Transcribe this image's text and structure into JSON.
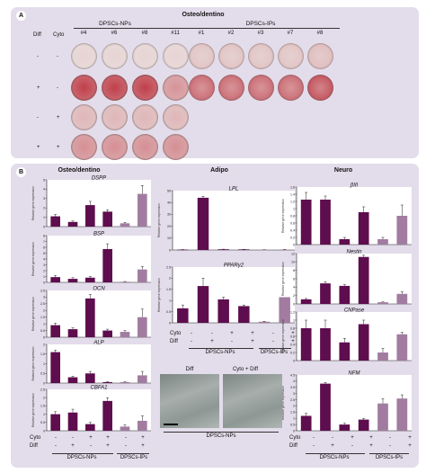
{
  "panelA": {
    "badge": "A",
    "title": "Osteo/dentino",
    "group_np": "DPSCs-NPs",
    "group_ip": "DPSCs-IPs",
    "diff_label": "Diff",
    "cyto_label": "Cyto",
    "np_clones": [
      "#4",
      "#6",
      "#8",
      "#11"
    ],
    "ip_clones": [
      "#1",
      "#2",
      "#3",
      "#7",
      "#8"
    ],
    "rows": [
      {
        "diff": "-",
        "cyto": "-"
      },
      {
        "diff": "+",
        "cyto": "-"
      },
      {
        "diff": "-",
        "cyto": "+"
      },
      {
        "diff": "+",
        "cyto": "+"
      }
    ]
  },
  "panelB": {
    "badge": "B",
    "col_osteo": "Osteo/dentino",
    "col_adipo": "Adipo",
    "col_neuro": "Neuro",
    "ylabel": "Relative gene expression",
    "group_np": "DPSCs-NPs",
    "group_ip": "DPSCs-IPs",
    "cyto": "Cyto",
    "diff": "Diff",
    "cyto_signs": [
      "-",
      "-",
      "+",
      "+",
      "-",
      "+"
    ],
    "diff_signs": [
      "-",
      "+",
      "-",
      "+",
      "-",
      "+"
    ],
    "adipo_cyto_signs": [
      "-",
      "-",
      "+",
      "+",
      "-",
      "+"
    ],
    "adipo_diff_signs": [
      "-",
      "+",
      "-",
      "+",
      "-",
      "+"
    ],
    "micro_diff": "Diff",
    "micro_cytodiff": "Cyto + Diff",
    "micro_group": "DPSCs-NPs"
  },
  "colors": {
    "np": "#5e0d4e",
    "ip": "#a17ca0",
    "panel": "#e3dcea",
    "stain": "#b82230"
  },
  "chart_data": [
    {
      "type": "bar",
      "title": "DSPP",
      "ylim": [
        0,
        5
      ],
      "yticks": [
        "0",
        "1",
        "2",
        "3",
        "4",
        "5"
      ],
      "values": [
        1.1,
        0.5,
        2.3,
        1.6,
        0.35,
        3.5
      ],
      "errors": [
        0.2,
        0.1,
        0.4,
        0.2,
        0.1,
        0.9
      ]
    },
    {
      "type": "bar",
      "title": "BSP",
      "ylim": [
        0,
        8
      ],
      "yticks": [
        "0",
        "1",
        "2",
        "3",
        "4",
        "5",
        "6",
        "7",
        "8"
      ],
      "values": [
        0.9,
        0.6,
        0.8,
        5.7,
        0.1,
        2.2
      ],
      "errors": [
        0.3,
        0.2,
        0.2,
        0.9,
        0.05,
        0.5
      ]
    },
    {
      "type": "bar",
      "title": "OCN",
      "ylim": [
        0,
        3.5
      ],
      "yticks": [
        "0",
        "0.5",
        "1",
        "1.5",
        "2",
        "2.5",
        "3",
        "3.5"
      ],
      "values": [
        0.9,
        0.6,
        2.9,
        0.5,
        0.4,
        1.5
      ],
      "errors": [
        0.15,
        0.1,
        0.3,
        0.1,
        0.1,
        0.6
      ]
    },
    {
      "type": "bar",
      "title": "ALP",
      "ylim": [
        0,
        2
      ],
      "yticks": [
        "0",
        "0.5",
        "1",
        "1.5",
        "2"
      ],
      "values": [
        1.6,
        0.3,
        0.5,
        0.05,
        0.05,
        0.4
      ],
      "errors": [
        0.1,
        0.05,
        0.1,
        0.02,
        0.02,
        0.2
      ]
    },
    {
      "type": "bar",
      "title": "CBFA1",
      "ylim": [
        0,
        2.5
      ],
      "yticks": [
        "0",
        "0.5",
        "1",
        "1.5",
        "2",
        "2.5"
      ],
      "values": [
        1.0,
        1.1,
        0.4,
        1.8,
        0.25,
        0.6
      ],
      "errors": [
        0.15,
        0.2,
        0.1,
        0.2,
        0.1,
        0.3
      ]
    },
    {
      "type": "bar",
      "title": "LPL",
      "ylim": [
        0,
        50
      ],
      "yticks": [
        "0",
        "10",
        "20",
        "30",
        "40",
        "50"
      ],
      "values": [
        0.3,
        44,
        0.6,
        0.5,
        0.2,
        0.4
      ],
      "errors": [
        0.1,
        1.2,
        0.1,
        0.1,
        0.05,
        0.1
      ]
    },
    {
      "type": "bar",
      "title": "PPARγ2",
      "ylim": [
        0,
        2.5
      ],
      "yticks": [
        "0",
        "0.5",
        "1",
        "1.5",
        "2",
        "2.5"
      ],
      "values": [
        0.65,
        1.65,
        1.05,
        0.75,
        0.05,
        1.15
      ],
      "errors": [
        0.15,
        0.35,
        0.1,
        0.05,
        0.02,
        0.0
      ]
    },
    {
      "type": "bar",
      "title": "βIII",
      "ylim": [
        0,
        1.6
      ],
      "yticks": [
        "0",
        "0.2",
        "0.4",
        "0.6",
        "0.8",
        "1",
        "1.2",
        "1.4",
        "1.6"
      ],
      "values": [
        1.25,
        1.25,
        0.15,
        0.9,
        0.15,
        0.8
      ],
      "errors": [
        0.2,
        0.1,
        0.05,
        0.15,
        0.05,
        0.3
      ]
    },
    {
      "type": "bar",
      "title": "Nestin",
      "ylim": [
        0,
        12
      ],
      "yticks": [
        "0",
        "2",
        "4",
        "6",
        "8",
        "10",
        "12"
      ],
      "values": [
        1.1,
        4.9,
        4.3,
        11.2,
        0.4,
        2.4
      ],
      "errors": [
        0.2,
        0.4,
        0.3,
        0.4,
        0.1,
        0.5
      ]
    },
    {
      "type": "bar",
      "title": "CNPase",
      "ylim": [
        0,
        1.2
      ],
      "yticks": [
        "0",
        "0.2",
        "0.4",
        "0.6",
        "0.8",
        "1",
        "1.2"
      ],
      "values": [
        0.8,
        0.8,
        0.45,
        0.9,
        0.2,
        0.65
      ],
      "errors": [
        0.2,
        0.2,
        0.1,
        0.1,
        0.1,
        0.05
      ]
    },
    {
      "type": "bar",
      "title": "NFM",
      "ylim": [
        0,
        4.5
      ],
      "yticks": [
        "0",
        "0.5",
        "1",
        "1.5",
        "2",
        "2.5",
        "3",
        "3.5",
        "4",
        "4.5"
      ],
      "values": [
        1.2,
        3.8,
        0.5,
        0.9,
        2.2,
        2.6
      ],
      "errors": [
        0.2,
        0.1,
        0.1,
        0.1,
        0.4,
        0.3
      ]
    }
  ]
}
